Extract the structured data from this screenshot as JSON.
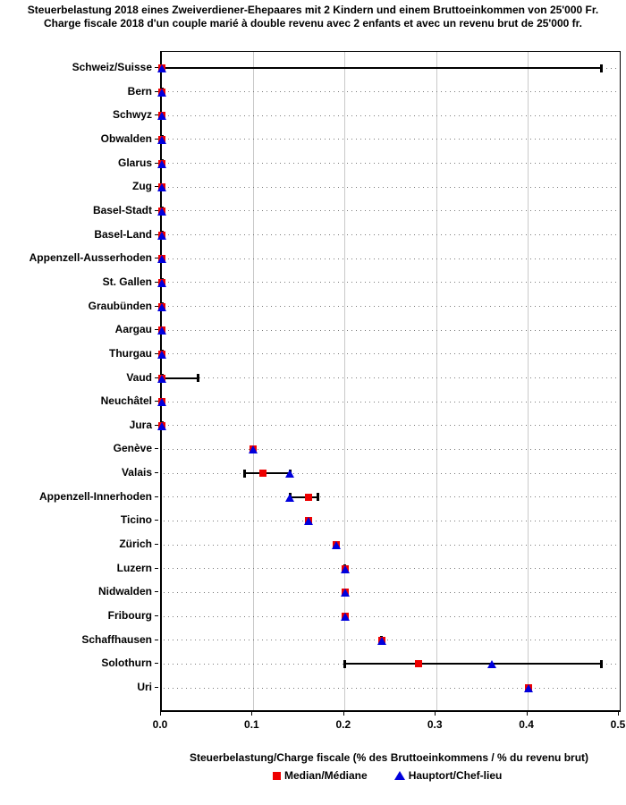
{
  "title": {
    "line1": "Steuerbelastung 2018 eines Zweiverdiener-Ehepaares mit 2 Kindern und einem Bruttoeinkommen von 25'000 Fr.",
    "line2": "Charge fiscale 2018 d'un couple marié à double revenu avec 2 enfants et avec un revenu brut de 25'000 fr."
  },
  "chart_data": {
    "type": "scatter",
    "subtype": "horizontal dot plot with min-max range whiskers per canton",
    "xlabel": "Steuerbelastung/Charge fiscale (% des Bruttoeinkommens / % du revenu brut)",
    "xlim": [
      0.0,
      0.5
    ],
    "xticks": [
      "0.0",
      "0.1",
      "0.2",
      "0.3",
      "0.4",
      "0.5"
    ],
    "grid": {
      "vertical": "solid light gray at each 0.1",
      "horizontal": "dotted gray line per category row"
    },
    "legend_position": "bottom center",
    "legend": [
      {
        "label": "Median/Médiane",
        "marker": "square",
        "color": "#ee0000"
      },
      {
        "label": "Hauptort/Chef-lieu",
        "marker": "triangle",
        "color": "#0000dd"
      }
    ],
    "colors": {
      "median": "#ee0000",
      "hauptort": "#0000dd",
      "range_line": "#000000"
    },
    "rows": [
      {
        "canton": "Schweiz/Suisse",
        "min": 0.0,
        "median": 0.0,
        "hauptort": 0.0,
        "max": 0.48
      },
      {
        "canton": "Bern",
        "min": 0.0,
        "median": 0.0,
        "hauptort": 0.0,
        "max": 0.0
      },
      {
        "canton": "Schwyz",
        "min": 0.0,
        "median": 0.0,
        "hauptort": 0.0,
        "max": 0.0
      },
      {
        "canton": "Obwalden",
        "min": 0.0,
        "median": 0.0,
        "hauptort": 0.0,
        "max": 0.0
      },
      {
        "canton": "Glarus",
        "min": 0.0,
        "median": 0.0,
        "hauptort": 0.0,
        "max": 0.0
      },
      {
        "canton": "Zug",
        "min": 0.0,
        "median": 0.0,
        "hauptort": 0.0,
        "max": 0.0
      },
      {
        "canton": "Basel-Stadt",
        "min": 0.0,
        "median": 0.0,
        "hauptort": 0.0,
        "max": 0.0
      },
      {
        "canton": "Basel-Land",
        "min": 0.0,
        "median": 0.0,
        "hauptort": 0.0,
        "max": 0.0
      },
      {
        "canton": "Appenzell-Ausserhoden",
        "min": 0.0,
        "median": 0.0,
        "hauptort": 0.0,
        "max": 0.0
      },
      {
        "canton": "St. Gallen",
        "min": 0.0,
        "median": 0.0,
        "hauptort": 0.0,
        "max": 0.0
      },
      {
        "canton": "Graubünden",
        "min": 0.0,
        "median": 0.0,
        "hauptort": 0.0,
        "max": 0.0
      },
      {
        "canton": "Aargau",
        "min": 0.0,
        "median": 0.0,
        "hauptort": 0.0,
        "max": 0.0
      },
      {
        "canton": "Thurgau",
        "min": 0.0,
        "median": 0.0,
        "hauptort": 0.0,
        "max": 0.0
      },
      {
        "canton": "Vaud",
        "min": 0.0,
        "median": 0.0,
        "hauptort": 0.0,
        "max": 0.04
      },
      {
        "canton": "Neuchâtel",
        "min": 0.0,
        "median": 0.0,
        "hauptort": 0.0,
        "max": 0.0
      },
      {
        "canton": "Jura",
        "min": 0.0,
        "median": 0.0,
        "hauptort": 0.0,
        "max": 0.0
      },
      {
        "canton": "Genève",
        "min": 0.1,
        "median": 0.1,
        "hauptort": 0.1,
        "max": 0.1
      },
      {
        "canton": "Valais",
        "min": 0.09,
        "median": 0.11,
        "hauptort": 0.14,
        "max": 0.14
      },
      {
        "canton": "Appenzell-Innerhoden",
        "min": 0.14,
        "median": 0.16,
        "hauptort": 0.14,
        "max": 0.17
      },
      {
        "canton": "Ticino",
        "min": 0.16,
        "median": 0.16,
        "hauptort": 0.16,
        "max": 0.16
      },
      {
        "canton": "Zürich",
        "min": 0.19,
        "median": 0.19,
        "hauptort": 0.19,
        "max": 0.19
      },
      {
        "canton": "Luzern",
        "min": 0.2,
        "median": 0.2,
        "hauptort": 0.2,
        "max": 0.2
      },
      {
        "canton": "Nidwalden",
        "min": 0.2,
        "median": 0.2,
        "hauptort": 0.2,
        "max": 0.2
      },
      {
        "canton": "Fribourg",
        "min": 0.2,
        "median": 0.2,
        "hauptort": 0.2,
        "max": 0.2
      },
      {
        "canton": "Schaffhausen",
        "min": 0.24,
        "median": 0.24,
        "hauptort": 0.24,
        "max": 0.24
      },
      {
        "canton": "Solothurn",
        "min": 0.2,
        "median": 0.28,
        "hauptort": 0.36,
        "max": 0.48
      },
      {
        "canton": "Uri",
        "min": 0.4,
        "median": 0.4,
        "hauptort": 0.4,
        "max": 0.4
      }
    ]
  }
}
